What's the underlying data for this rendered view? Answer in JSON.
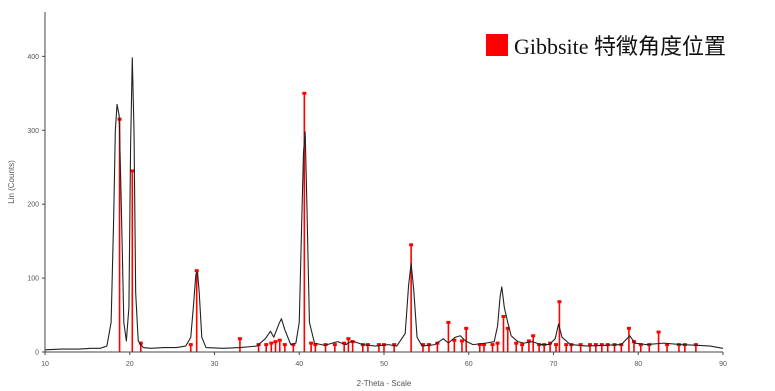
{
  "chart_data": {
    "type": "line",
    "title": "",
    "xlabel": "2-Theta - Scale",
    "ylabel": "Lin (Counts)",
    "xlim": [
      10,
      90
    ],
    "ylim": [
      0,
      460
    ],
    "x_ticks": [
      "10",
      "20",
      "30",
      "40",
      "50",
      "60",
      "70",
      "80",
      "90"
    ],
    "x_tick_values": [
      10,
      20,
      30,
      40,
      50,
      60,
      70,
      80,
      90
    ],
    "y_ticks": [
      "0",
      "100",
      "200",
      "300",
      "400"
    ],
    "y_tick_values": [
      0,
      100,
      200,
      300,
      400
    ],
    "legend": {
      "position": "top-right",
      "entries": [
        {
          "label": "Gibbsite 特徵角度位置",
          "color": "#ff0000"
        }
      ]
    },
    "series": [
      {
        "style": "line",
        "color": "#222222",
        "points": [
          [
            10.0,
            3
          ],
          [
            12.0,
            4
          ],
          [
            14.0,
            4
          ],
          [
            15.5,
            5
          ],
          [
            16.5,
            5
          ],
          [
            17.3,
            8
          ],
          [
            17.8,
            40
          ],
          [
            18.1,
            180
          ],
          [
            18.3,
            300
          ],
          [
            18.5,
            335
          ],
          [
            18.75,
            320
          ],
          [
            19.0,
            200
          ],
          [
            19.3,
            40
          ],
          [
            19.6,
            15
          ],
          [
            19.9,
            60
          ],
          [
            20.1,
            280
          ],
          [
            20.3,
            398
          ],
          [
            20.5,
            300
          ],
          [
            20.7,
            80
          ],
          [
            21.0,
            15
          ],
          [
            21.6,
            6
          ],
          [
            22.5,
            5
          ],
          [
            24.0,
            6
          ],
          [
            25.5,
            6
          ],
          [
            26.6,
            8
          ],
          [
            27.2,
            20
          ],
          [
            27.5,
            60
          ],
          [
            27.8,
            105
          ],
          [
            28.0,
            108
          ],
          [
            28.2,
            80
          ],
          [
            28.5,
            20
          ],
          [
            29.0,
            6
          ],
          [
            31.0,
            5
          ],
          [
            33.0,
            6
          ],
          [
            35.0,
            8
          ],
          [
            36.0,
            18
          ],
          [
            36.6,
            28
          ],
          [
            37.0,
            20
          ],
          [
            37.6,
            38
          ],
          [
            37.9,
            45
          ],
          [
            38.3,
            30
          ],
          [
            39.0,
            10
          ],
          [
            39.6,
            12
          ],
          [
            40.0,
            40
          ],
          [
            40.3,
            180
          ],
          [
            40.5,
            270
          ],
          [
            40.7,
            298
          ],
          [
            40.9,
            200
          ],
          [
            41.2,
            40
          ],
          [
            41.8,
            12
          ],
          [
            43.0,
            9
          ],
          [
            44.5,
            14
          ],
          [
            45.5,
            10
          ],
          [
            46.2,
            15
          ],
          [
            47.5,
            10
          ],
          [
            49.0,
            8
          ],
          [
            50.5,
            10
          ],
          [
            51.5,
            8
          ],
          [
            52.5,
            25
          ],
          [
            52.9,
            90
          ],
          [
            53.2,
            120
          ],
          [
            53.5,
            85
          ],
          [
            53.9,
            20
          ],
          [
            54.5,
            8
          ],
          [
            56.0,
            10
          ],
          [
            57.0,
            18
          ],
          [
            57.6,
            12
          ],
          [
            58.4,
            20
          ],
          [
            59.0,
            22
          ],
          [
            59.6,
            15
          ],
          [
            60.5,
            10
          ],
          [
            62.0,
            12
          ],
          [
            63.0,
            14
          ],
          [
            63.4,
            35
          ],
          [
            63.7,
            75
          ],
          [
            63.9,
            88
          ],
          [
            64.2,
            60
          ],
          [
            64.6,
            40
          ],
          [
            65.0,
            22
          ],
          [
            65.8,
            14
          ],
          [
            66.5,
            12
          ],
          [
            67.5,
            14
          ],
          [
            68.5,
            10
          ],
          [
            69.5,
            10
          ],
          [
            70.2,
            18
          ],
          [
            70.6,
            38
          ],
          [
            71.0,
            20
          ],
          [
            72.0,
            10
          ],
          [
            74.0,
            8
          ],
          [
            76.0,
            9
          ],
          [
            78.0,
            10
          ],
          [
            79.0,
            22
          ],
          [
            79.6,
            12
          ],
          [
            81.0,
            10
          ],
          [
            83.0,
            12
          ],
          [
            85.0,
            10
          ],
          [
            87.0,
            9
          ],
          [
            88.5,
            8
          ],
          [
            90.0,
            5
          ]
        ]
      },
      {
        "name": "Gibbsite 特徵角度位置",
        "style": "stick",
        "color": "#ff0000",
        "points": [
          [
            18.8,
            315
          ],
          [
            20.3,
            245
          ],
          [
            21.3,
            12
          ],
          [
            27.2,
            10
          ],
          [
            27.9,
            110
          ],
          [
            33.0,
            18
          ],
          [
            35.2,
            10
          ],
          [
            36.1,
            10
          ],
          [
            36.7,
            12
          ],
          [
            37.2,
            14
          ],
          [
            37.7,
            16
          ],
          [
            38.3,
            10
          ],
          [
            39.3,
            10
          ],
          [
            40.6,
            350
          ],
          [
            41.4,
            12
          ],
          [
            41.9,
            10
          ],
          [
            43.1,
            10
          ],
          [
            44.2,
            10
          ],
          [
            45.3,
            12
          ],
          [
            45.8,
            18
          ],
          [
            46.3,
            14
          ],
          [
            47.5,
            10
          ],
          [
            48.1,
            10
          ],
          [
            49.4,
            10
          ],
          [
            50.0,
            10
          ],
          [
            51.2,
            10
          ],
          [
            53.2,
            145
          ],
          [
            54.6,
            10
          ],
          [
            55.3,
            10
          ],
          [
            56.3,
            12
          ],
          [
            57.6,
            40
          ],
          [
            58.3,
            16
          ],
          [
            59.2,
            15
          ],
          [
            59.7,
            32
          ],
          [
            61.3,
            10
          ],
          [
            61.8,
            10
          ],
          [
            62.8,
            10
          ],
          [
            63.4,
            12
          ],
          [
            64.1,
            48
          ],
          [
            64.6,
            32
          ],
          [
            65.6,
            12
          ],
          [
            66.3,
            10
          ],
          [
            67.1,
            15
          ],
          [
            67.6,
            22
          ],
          [
            68.3,
            10
          ],
          [
            68.9,
            10
          ],
          [
            69.6,
            12
          ],
          [
            70.3,
            10
          ],
          [
            70.7,
            68
          ],
          [
            71.5,
            10
          ],
          [
            72.1,
            10
          ],
          [
            73.2,
            10
          ],
          [
            74.3,
            10
          ],
          [
            75.0,
            10
          ],
          [
            75.7,
            10
          ],
          [
            76.4,
            10
          ],
          [
            77.2,
            10
          ],
          [
            78.0,
            10
          ],
          [
            78.9,
            32
          ],
          [
            79.5,
            14
          ],
          [
            80.3,
            10
          ],
          [
            81.3,
            10
          ],
          [
            82.4,
            27
          ],
          [
            83.4,
            10
          ],
          [
            84.8,
            10
          ],
          [
            85.5,
            10
          ],
          [
            86.8,
            10
          ]
        ]
      }
    ]
  }
}
